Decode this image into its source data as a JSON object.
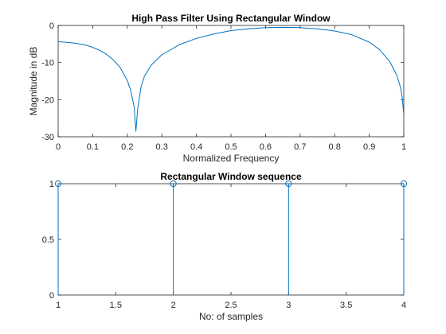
{
  "colors": {
    "line": "#0072BD",
    "axes": "#262626",
    "background": "#ffffff"
  },
  "chart_data": [
    {
      "type": "line",
      "title": "High Pass Filter Using Rectangular  Window",
      "xlabel": "Normalized Frequency",
      "ylabel": "Magnitude in dB",
      "xlim": [
        0,
        1
      ],
      "ylim": [
        -30,
        0
      ],
      "grid": false,
      "x_ticks": [
        "0",
        "0.1",
        "0.2",
        "0.3",
        "0.4",
        "0.5",
        "0.6",
        "0.7",
        "0.8",
        "0.9",
        "1"
      ],
      "y_ticks": [
        "-30",
        "-20",
        "-10",
        "0"
      ],
      "series": [
        {
          "x": [
            0,
            0.02,
            0.05,
            0.08,
            0.1,
            0.12,
            0.14,
            0.16,
            0.18,
            0.2,
            0.21,
            0.22,
            0.225,
            0.23,
            0.24,
            0.25,
            0.27,
            0.3,
            0.35,
            0.4,
            0.45,
            0.5,
            0.55,
            0.6,
            0.65,
            0.7,
            0.75,
            0.8,
            0.85,
            0.9,
            0.93,
            0.96,
            0.98,
            0.99,
            0.995,
            1.0
          ],
          "y": [
            -4.4,
            -4.5,
            -4.8,
            -5.3,
            -5.9,
            -6.7,
            -7.8,
            -9.3,
            -11.4,
            -14.8,
            -17.5,
            -22.0,
            -28.5,
            -22.5,
            -16.5,
            -13.6,
            -10.6,
            -7.9,
            -5.2,
            -3.5,
            -2.3,
            -1.4,
            -0.9,
            -0.6,
            -0.5,
            -0.6,
            -0.9,
            -1.5,
            -2.5,
            -4.5,
            -6.5,
            -9.8,
            -13.5,
            -16.5,
            -19.0,
            -24.0
          ]
        }
      ]
    },
    {
      "type": "stem",
      "title": "Rectangular  Window sequence",
      "xlabel": "No: of samples",
      "ylabel": "",
      "xlim": [
        1,
        4
      ],
      "ylim": [
        0,
        1
      ],
      "grid": false,
      "x_ticks": [
        "1",
        "1.5",
        "2",
        "2.5",
        "3",
        "3.5",
        "4"
      ],
      "y_ticks": [
        "0",
        "0.5",
        "1"
      ],
      "series": [
        {
          "x": [
            1,
            2,
            3,
            4
          ],
          "y": [
            1,
            1,
            1,
            1
          ]
        }
      ]
    }
  ]
}
